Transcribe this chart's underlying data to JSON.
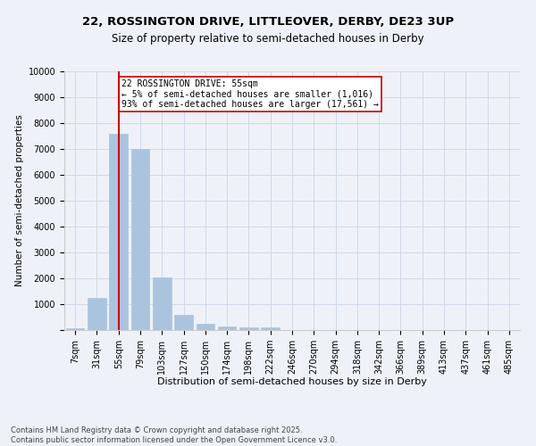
{
  "title_line1": "22, ROSSINGTON DRIVE, LITTLEOVER, DERBY, DE23 3UP",
  "title_line2": "Size of property relative to semi-detached houses in Derby",
  "xlabel": "Distribution of semi-detached houses by size in Derby",
  "ylabel": "Number of semi-detached properties",
  "categories": [
    "7sqm",
    "31sqm",
    "55sqm",
    "79sqm",
    "103sqm",
    "127sqm",
    "150sqm",
    "174sqm",
    "198sqm",
    "222sqm",
    "246sqm",
    "270sqm",
    "294sqm",
    "318sqm",
    "342sqm",
    "366sqm",
    "389sqm",
    "413sqm",
    "437sqm",
    "461sqm",
    "485sqm"
  ],
  "values": [
    75,
    1230,
    7600,
    7000,
    2020,
    590,
    255,
    135,
    120,
    100,
    0,
    0,
    0,
    0,
    0,
    0,
    0,
    0,
    0,
    0,
    0
  ],
  "bar_color": "#aac4e0",
  "bar_edge_color": "#aac4e0",
  "redline_index": 2,
  "redline_color": "#cc0000",
  "annotation_text": "22 ROSSINGTON DRIVE: 55sqm\n← 5% of semi-detached houses are smaller (1,016)\n93% of semi-detached houses are larger (17,561) →",
  "ylim": [
    0,
    10000
  ],
  "yticks": [
    0,
    1000,
    2000,
    3000,
    4000,
    5000,
    6000,
    7000,
    8000,
    9000,
    10000
  ],
  "grid_color": "#d0d8e8",
  "bg_color": "#eef2f8",
  "footer_line1": "Contains HM Land Registry data © Crown copyright and database right 2025.",
  "footer_line2": "Contains public sector information licensed under the Open Government Licence v3.0.",
  "title1_fontsize": 9.5,
  "title2_fontsize": 8.5,
  "xlabel_fontsize": 8,
  "ylabel_fontsize": 7.5,
  "tick_fontsize": 7,
  "annotation_fontsize": 7,
  "footer_fontsize": 6
}
